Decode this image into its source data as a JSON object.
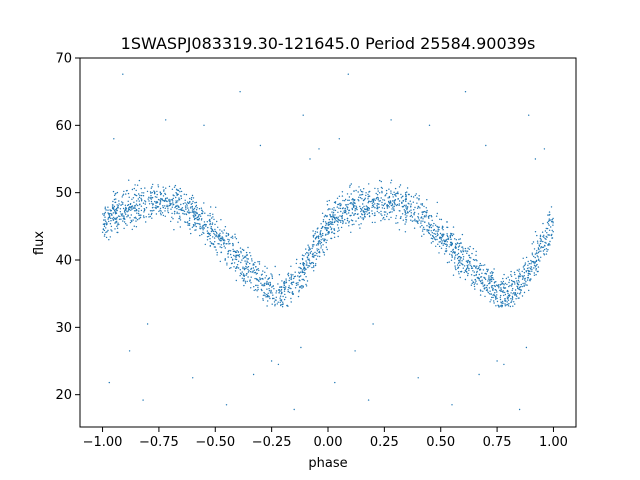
{
  "chart_data": {
    "type": "scatter",
    "title": "1SWASPJ083319.30-121645.0 Period 25584.90039s",
    "xlabel": "phase",
    "ylabel": "flux",
    "xlim": [
      -1.1,
      1.1
    ],
    "ylim": [
      15.2,
      70
    ],
    "xticks": [
      -1.0,
      -0.75,
      -0.5,
      -0.25,
      0.0,
      0.25,
      0.5,
      0.75,
      1.0
    ],
    "xtick_labels": [
      "−1.00",
      "−0.75",
      "−0.50",
      "−0.25",
      "0.00",
      "0.25",
      "0.50",
      "0.75",
      "1.00"
    ],
    "yticks": [
      20,
      30,
      40,
      50,
      60,
      70
    ],
    "ytick_labels": [
      "20",
      "30",
      "40",
      "50",
      "60",
      "70"
    ],
    "grid": false,
    "legend": "none",
    "point_color": "#1f77b4",
    "series": [
      {
        "profile_phase": [
          0.0,
          0.05,
          0.1,
          0.15,
          0.2,
          0.25,
          0.3,
          0.35,
          0.4,
          0.45,
          0.5,
          0.55,
          0.6,
          0.65,
          0.7,
          0.75,
          0.8,
          0.85,
          0.9,
          0.95,
          1.0
        ],
        "profile_flux": [
          45.5,
          46.8,
          47.6,
          48.2,
          48.5,
          48.6,
          48.5,
          48.0,
          47.0,
          45.5,
          43.8,
          42.0,
          40.2,
          38.5,
          36.8,
          35.3,
          35.0,
          36.5,
          39.0,
          42.0,
          45.0
        ],
        "scatter_width": 2.0,
        "outliers": [
          {
            "x": -0.91,
            "y": 67.6
          },
          {
            "x": 0.09,
            "y": 67.6
          },
          {
            "x": -0.39,
            "y": 65.0
          },
          {
            "x": 0.61,
            "y": 65.0
          },
          {
            "x": 0.89,
            "y": 61.5
          },
          {
            "x": -0.11,
            "y": 61.5
          },
          {
            "x": -0.72,
            "y": 60.8
          },
          {
            "x": 0.28,
            "y": 60.8
          },
          {
            "x": 0.45,
            "y": 60.0
          },
          {
            "x": -0.55,
            "y": 60.0
          },
          {
            "x": -0.95,
            "y": 58.0
          },
          {
            "x": 0.05,
            "y": 58.0
          },
          {
            "x": -0.22,
            "y": 24.5
          },
          {
            "x": 0.78,
            "y": 24.5
          },
          {
            "x": -0.25,
            "y": 25.0
          },
          {
            "x": 0.75,
            "y": 25.0
          },
          {
            "x": -0.82,
            "y": 19.2
          },
          {
            "x": 0.18,
            "y": 19.2
          },
          {
            "x": -0.45,
            "y": 18.5
          },
          {
            "x": 0.55,
            "y": 18.5
          },
          {
            "x": -0.15,
            "y": 17.8
          },
          {
            "x": 0.85,
            "y": 17.8
          },
          {
            "x": -0.97,
            "y": 21.8
          },
          {
            "x": 0.03,
            "y": 21.8
          },
          {
            "x": -0.6,
            "y": 22.5
          },
          {
            "x": 0.4,
            "y": 22.5
          },
          {
            "x": -0.33,
            "y": 23.0
          },
          {
            "x": 0.67,
            "y": 23.0
          },
          {
            "x": -0.88,
            "y": 26.5
          },
          {
            "x": 0.12,
            "y": 26.5
          },
          {
            "x": -0.8,
            "y": 30.5
          },
          {
            "x": 0.2,
            "y": 30.5
          },
          {
            "x": -0.12,
            "y": 27.0
          },
          {
            "x": 0.88,
            "y": 27.0
          },
          {
            "x": 0.96,
            "y": 56.5
          },
          {
            "x": -0.04,
            "y": 56.5
          },
          {
            "x": 0.92,
            "y": 55.0
          },
          {
            "x": -0.08,
            "y": 55.0
          },
          {
            "x": -0.3,
            "y": 57.0
          },
          {
            "x": 0.7,
            "y": 57.0
          }
        ]
      }
    ]
  }
}
